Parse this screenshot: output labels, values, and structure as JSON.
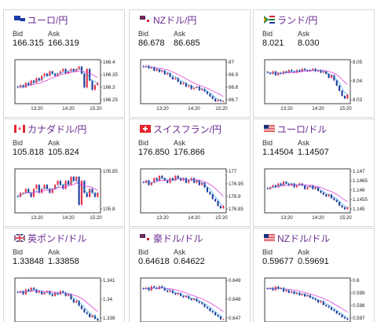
{
  "labels": {
    "bid": "Bid",
    "ask": "Ask"
  },
  "colors": {
    "title": "#6a2c91",
    "up": "#e8334a",
    "down": "#1f3d9c",
    "ma1": "#e040d8",
    "ma2": "#2aa0e0"
  },
  "cards": [
    {
      "title": "ユーロ/円",
      "flag": "eu-flag-icon",
      "bid": "166.315",
      "ask": "166.319",
      "yticks": [
        "166.4",
        "166.35",
        "166.3",
        "166.25"
      ],
      "xticks": [
        "13:20",
        "14:20",
        "15:20"
      ],
      "chart_data": {
        "type": "candlestick",
        "ylim": [
          166.23,
          166.42
        ],
        "closes": [
          166.3,
          166.31,
          166.3,
          166.32,
          166.31,
          166.33,
          166.32,
          166.34,
          166.33,
          166.35,
          166.36,
          166.35,
          166.37,
          166.36,
          166.35,
          166.36,
          166.37,
          166.38,
          166.36,
          166.37,
          166.38,
          166.37,
          166.38,
          166.39,
          166.36,
          166.3,
          166.38,
          166.33,
          166.29,
          166.31,
          166.32
        ]
      }
    },
    {
      "title": "NZドル/円",
      "flag": "nz-flag-icon",
      "bid": "86.678",
      "ask": "86.685",
      "yticks": [
        "87",
        "86.9",
        "86.8",
        "86.7"
      ],
      "xticks": [
        "13:20",
        "14:20",
        "15:20"
      ],
      "chart_data": {
        "type": "candlestick",
        "ylim": [
          86.66,
          87.02
        ],
        "closes": [
          86.96,
          86.97,
          86.95,
          86.96,
          86.93,
          86.94,
          86.92,
          86.93,
          86.9,
          86.91,
          86.88,
          86.86,
          86.87,
          86.84,
          86.82,
          86.83,
          86.8,
          86.81,
          86.78,
          86.79,
          86.8,
          86.77,
          86.78,
          86.76,
          86.74,
          86.72,
          86.7,
          86.68,
          86.69,
          86.68,
          86.68
        ]
      }
    },
    {
      "title": "ランド/円",
      "flag": "za-flag-icon",
      "bid": "8.021",
      "ask": "8.030",
      "yticks": [
        "8.05",
        "8.04",
        "8.03"
      ],
      "xticks": [
        "13:20",
        "14:20",
        "15:20"
      ],
      "chart_data": {
        "type": "candlestick",
        "ylim": [
          8.018,
          8.052
        ],
        "closes": [
          8.042,
          8.041,
          8.043,
          8.04,
          8.042,
          8.041,
          8.043,
          8.042,
          8.044,
          8.043,
          8.042,
          8.044,
          8.043,
          8.045,
          8.044,
          8.043,
          8.044,
          8.045,
          8.043,
          8.044,
          8.042,
          8.043,
          8.041,
          8.038,
          8.04,
          8.036,
          8.032,
          8.028,
          8.024,
          8.022,
          8.025
        ]
      }
    },
    {
      "title": "カナダドル/円",
      "flag": "ca-flag-icon",
      "bid": "105.818",
      "ask": "105.824",
      "yticks": [
        "105.85",
        "105.8"
      ],
      "xticks": [
        "13:20",
        "14:20",
        "15:20"
      ],
      "chart_data": {
        "type": "candlestick",
        "ylim": [
          105.77,
          105.88
        ],
        "closes": [
          105.81,
          105.82,
          105.82,
          105.83,
          105.82,
          105.81,
          105.83,
          105.84,
          105.82,
          105.83,
          105.84,
          105.83,
          105.82,
          105.83,
          105.84,
          105.85,
          105.84,
          105.83,
          105.85,
          105.84,
          105.86,
          105.85,
          105.86,
          105.79,
          105.85,
          105.82,
          105.81,
          105.83,
          105.82,
          105.81,
          105.82
        ]
      }
    },
    {
      "title": "スイスフラン/円",
      "flag": "ch-flag-icon",
      "bid": "176.850",
      "ask": "176.866",
      "yticks": [
        "177",
        "176.95",
        "176.9",
        "176.85"
      ],
      "xticks": [
        "13:20",
        "14:20",
        "15:20"
      ],
      "chart_data": {
        "type": "candlestick",
        "ylim": [
          176.83,
          177.02
        ],
        "closes": [
          176.96,
          176.97,
          176.95,
          176.96,
          176.98,
          176.97,
          176.99,
          176.98,
          176.97,
          176.96,
          176.98,
          176.97,
          176.99,
          176.98,
          176.97,
          176.98,
          176.96,
          176.97,
          176.98,
          176.96,
          176.97,
          176.95,
          176.96,
          176.94,
          176.92,
          176.91,
          176.89,
          176.88,
          176.86,
          176.85,
          176.86
        ]
      }
    },
    {
      "title": "ユーロ/ドル",
      "flag": "us-flag-icon",
      "bid": "1.14504",
      "ask": "1.14507",
      "yticks": [
        "1.147",
        "1.1465",
        "1.146",
        "1.1455",
        "1.145"
      ],
      "xticks": [
        "13:20",
        "14:20",
        "15:20"
      ],
      "chart_data": {
        "type": "candlestick",
        "ylim": [
          1.1448,
          1.1472
        ],
        "closes": [
          1.1461,
          1.1462,
          1.1463,
          1.1462,
          1.1464,
          1.1463,
          1.1465,
          1.1464,
          1.1463,
          1.1464,
          1.1462,
          1.1463,
          1.1464,
          1.1463,
          1.1461,
          1.1462,
          1.1463,
          1.1461,
          1.1462,
          1.146,
          1.1459,
          1.1458,
          1.1457,
          1.1458,
          1.1456,
          1.1455,
          1.1454,
          1.1452,
          1.1451,
          1.145,
          1.1451
        ]
      }
    },
    {
      "title": "英ポンド/ドル",
      "flag": "uk-flag-icon",
      "bid": "1.33848",
      "ask": "1.33858",
      "yticks": [
        "1.341",
        "1.34",
        "1.339"
      ],
      "xticks": [
        "13:20",
        "14:20",
        "15:20"
      ],
      "chart_data": {
        "type": "candlestick",
        "ylim": [
          1.3385,
          1.3412
        ],
        "closes": [
          1.3403,
          1.3404,
          1.3402,
          1.3405,
          1.3404,
          1.3406,
          1.3405,
          1.3403,
          1.3404,
          1.3402,
          1.3403,
          1.3404,
          1.3402,
          1.3401,
          1.3403,
          1.3402,
          1.3404,
          1.3403,
          1.3401,
          1.3402,
          1.3399,
          1.3397,
          1.3398,
          1.3395,
          1.3393,
          1.3391,
          1.339,
          1.3388,
          1.3389,
          1.3387,
          1.3386
        ]
      }
    },
    {
      "title": "豪ドル/ドル",
      "flag": "au-flag-icon",
      "bid": "0.64618",
      "ask": "0.64622",
      "yticks": [
        "0.649",
        "0.648",
        "0.647"
      ],
      "xticks": [
        "13:20",
        "14:20",
        "15:20"
      ],
      "chart_data": {
        "type": "candlestick",
        "ylim": [
          0.646,
          0.6492
        ],
        "closes": [
          0.6484,
          0.6485,
          0.6483,
          0.6486,
          0.6485,
          0.6484,
          0.6486,
          0.6485,
          0.6483,
          0.6482,
          0.6483,
          0.6481,
          0.648,
          0.6481,
          0.6479,
          0.6478,
          0.6479,
          0.6477,
          0.6476,
          0.6477,
          0.6475,
          0.6474,
          0.6473,
          0.6471,
          0.647,
          0.6468,
          0.6467,
          0.6465,
          0.6464,
          0.6462,
          0.6462
        ]
      }
    },
    {
      "title": "NZドル/ドル",
      "flag": "us-flag-icon",
      "bid": "0.59677",
      "ask": "0.59691",
      "yticks": [
        "0.6",
        "0.599",
        "0.598",
        "0.597"
      ],
      "xticks": [
        "13:20",
        "14:20",
        "15:20"
      ],
      "chart_data": {
        "type": "candlestick",
        "ylim": [
          0.5966,
          0.6002
        ],
        "closes": [
          0.5993,
          0.5994,
          0.5992,
          0.5995,
          0.5993,
          0.5994,
          0.5991,
          0.5992,
          0.599,
          0.5991,
          0.5989,
          0.599,
          0.5988,
          0.5989,
          0.5987,
          0.5988,
          0.5986,
          0.5985,
          0.5984,
          0.5982,
          0.5983,
          0.598,
          0.5979,
          0.5978,
          0.5976,
          0.5975,
          0.5973,
          0.5972,
          0.597,
          0.5969,
          0.5968
        ]
      }
    }
  ]
}
